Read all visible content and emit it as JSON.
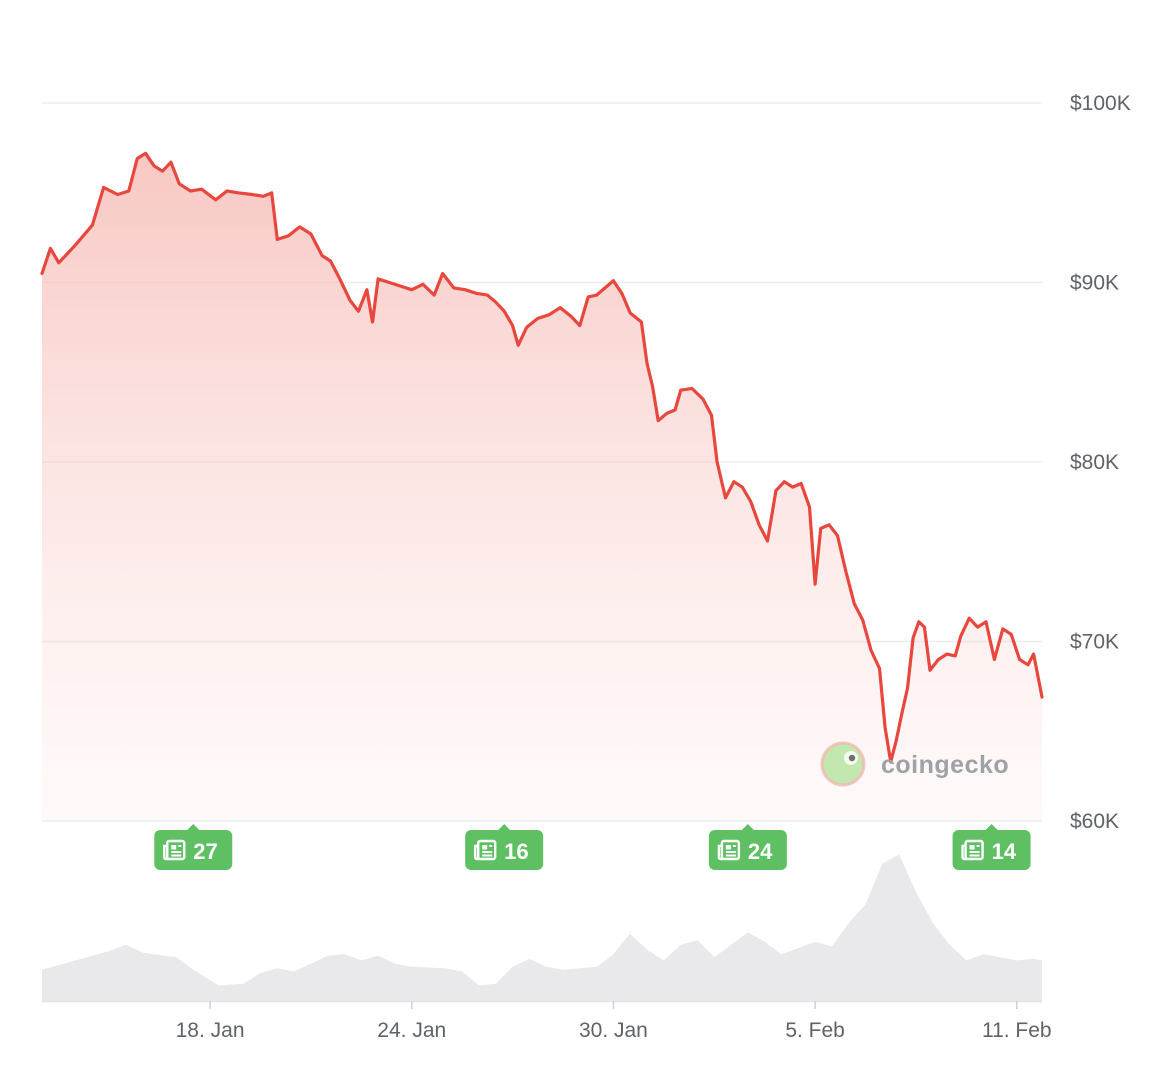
{
  "chart_data": {
    "type": "area",
    "title": "",
    "xlabel": "",
    "ylabel": "",
    "ylim": [
      60000,
      100000
    ],
    "x_domain": [
      "2025-01-13",
      "2025-02-11"
    ],
    "y_ticks": [
      {
        "value": 100000,
        "label": "$100K"
      },
      {
        "value": 90000,
        "label": "$90K"
      },
      {
        "value": 80000,
        "label": "$80K"
      },
      {
        "value": 70000,
        "label": "$70K"
      },
      {
        "value": 60000,
        "label": "$60K"
      }
    ],
    "x_ticks": [
      {
        "date": "2025-01-18",
        "label": "18. Jan"
      },
      {
        "date": "2025-01-24",
        "label": "24. Jan"
      },
      {
        "date": "2025-01-30",
        "label": "30. Jan"
      },
      {
        "date": "2025-02-05",
        "label": "5. Feb"
      },
      {
        "date": "2025-02-11",
        "label": "11. Feb"
      }
    ],
    "grid": true,
    "line_color": "#e8473e",
    "fill_color": "#f6a39c",
    "series": [
      {
        "points": [
          [
            "2025-01-13T00:00",
            90500
          ],
          [
            "2025-01-13T06:00",
            91900
          ],
          [
            "2025-01-13T12:00",
            91100
          ],
          [
            "2025-01-14T00:00",
            92100
          ],
          [
            "2025-01-14T12:00",
            93200
          ],
          [
            "2025-01-14T20:00",
            95300
          ],
          [
            "2025-01-15T06:00",
            94900
          ],
          [
            "2025-01-15T14:00",
            95100
          ],
          [
            "2025-01-15T20:00",
            96900
          ],
          [
            "2025-01-16T02:00",
            97200
          ],
          [
            "2025-01-16T08:00",
            96500
          ],
          [
            "2025-01-16T14:00",
            96200
          ],
          [
            "2025-01-16T20:00",
            96700
          ],
          [
            "2025-01-17T02:00",
            95500
          ],
          [
            "2025-01-17T10:00",
            95100
          ],
          [
            "2025-01-17T18:00",
            95200
          ],
          [
            "2025-01-18T04:00",
            94600
          ],
          [
            "2025-01-18T12:00",
            95100
          ],
          [
            "2025-01-18T20:00",
            95000
          ],
          [
            "2025-01-19T06:00",
            94900
          ],
          [
            "2025-01-19T14:00",
            94800
          ],
          [
            "2025-01-19T20:00",
            95000
          ],
          [
            "2025-01-20T00:00",
            92400
          ],
          [
            "2025-01-20T08:00",
            92600
          ],
          [
            "2025-01-20T16:00",
            93100
          ],
          [
            "2025-01-21T00:00",
            92700
          ],
          [
            "2025-01-21T08:00",
            91500
          ],
          [
            "2025-01-21T14:00",
            91200
          ],
          [
            "2025-01-21T20:00",
            90300
          ],
          [
            "2025-01-22T04:00",
            89000
          ],
          [
            "2025-01-22T10:00",
            88400
          ],
          [
            "2025-01-22T16:00",
            89600
          ],
          [
            "2025-01-22T20:00",
            87800
          ],
          [
            "2025-01-23T00:00",
            90200
          ],
          [
            "2025-01-23T08:00",
            90000
          ],
          [
            "2025-01-23T16:00",
            89800
          ],
          [
            "2025-01-24T00:00",
            89600
          ],
          [
            "2025-01-24T08:00",
            89900
          ],
          [
            "2025-01-24T16:00",
            89300
          ],
          [
            "2025-01-24T22:00",
            90500
          ],
          [
            "2025-01-25T06:00",
            89700
          ],
          [
            "2025-01-25T14:00",
            89600
          ],
          [
            "2025-01-25T22:00",
            89400
          ],
          [
            "2025-01-26T06:00",
            89300
          ],
          [
            "2025-01-26T12:00",
            88900
          ],
          [
            "2025-01-26T18:00",
            88400
          ],
          [
            "2025-01-27T00:00",
            87600
          ],
          [
            "2025-01-27T04:00",
            86500
          ],
          [
            "2025-01-27T10:00",
            87500
          ],
          [
            "2025-01-27T18:00",
            88000
          ],
          [
            "2025-01-28T02:00",
            88200
          ],
          [
            "2025-01-28T10:00",
            88600
          ],
          [
            "2025-01-28T18:00",
            88100
          ],
          [
            "2025-01-29T00:00",
            87600
          ],
          [
            "2025-01-29T06:00",
            89200
          ],
          [
            "2025-01-29T12:00",
            89300
          ],
          [
            "2025-01-29T18:00",
            89700
          ],
          [
            "2025-01-30T00:00",
            90100
          ],
          [
            "2025-01-30T06:00",
            89400
          ],
          [
            "2025-01-30T12:00",
            88300
          ],
          [
            "2025-01-30T20:00",
            87800
          ],
          [
            "2025-01-31T00:00",
            85500
          ],
          [
            "2025-01-31T04:00",
            84200
          ],
          [
            "2025-01-31T08:00",
            82300
          ],
          [
            "2025-01-31T14:00",
            82700
          ],
          [
            "2025-01-31T20:00",
            82900
          ],
          [
            "2025-02-01T00:00",
            84000
          ],
          [
            "2025-02-01T08:00",
            84100
          ],
          [
            "2025-02-01T16:00",
            83500
          ],
          [
            "2025-02-01T22:00",
            82600
          ],
          [
            "2025-02-02T02:00",
            80000
          ],
          [
            "2025-02-02T08:00",
            78000
          ],
          [
            "2025-02-02T14:00",
            78900
          ],
          [
            "2025-02-02T20:00",
            78600
          ],
          [
            "2025-02-03T02:00",
            77800
          ],
          [
            "2025-02-03T08:00",
            76500
          ],
          [
            "2025-02-03T14:00",
            75600
          ],
          [
            "2025-02-03T20:00",
            78400
          ],
          [
            "2025-02-04T02:00",
            78900
          ],
          [
            "2025-02-04T08:00",
            78600
          ],
          [
            "2025-02-04T14:00",
            78800
          ],
          [
            "2025-02-04T20:00",
            77500
          ],
          [
            "2025-02-05T00:00",
            73200
          ],
          [
            "2025-02-05T04:00",
            76300
          ],
          [
            "2025-02-05T10:00",
            76500
          ],
          [
            "2025-02-05T16:00",
            75900
          ],
          [
            "2025-02-05T22:00",
            73900
          ],
          [
            "2025-02-06T04:00",
            72100
          ],
          [
            "2025-02-06T10:00",
            71200
          ],
          [
            "2025-02-06T16:00",
            69500
          ],
          [
            "2025-02-06T22:00",
            68500
          ],
          [
            "2025-02-07T02:00",
            65200
          ],
          [
            "2025-02-07T06:00",
            63300
          ],
          [
            "2025-02-07T10:00",
            64500
          ],
          [
            "2025-02-07T14:00",
            66000
          ],
          [
            "2025-02-07T18:00",
            67400
          ],
          [
            "2025-02-07T22:00",
            70200
          ],
          [
            "2025-02-08T02:00",
            71100
          ],
          [
            "2025-02-08T06:00",
            70800
          ],
          [
            "2025-02-08T10:00",
            68400
          ],
          [
            "2025-02-08T16:00",
            69000
          ],
          [
            "2025-02-08T22:00",
            69300
          ],
          [
            "2025-02-09T04:00",
            69200
          ],
          [
            "2025-02-09T08:00",
            70300
          ],
          [
            "2025-02-09T14:00",
            71300
          ],
          [
            "2025-02-09T20:00",
            70800
          ],
          [
            "2025-02-10T02:00",
            71100
          ],
          [
            "2025-02-10T08:00",
            69000
          ],
          [
            "2025-02-10T14:00",
            70700
          ],
          [
            "2025-02-10T20:00",
            70400
          ],
          [
            "2025-02-11T02:00",
            69000
          ],
          [
            "2025-02-11T08:00",
            68700
          ],
          [
            "2025-02-11T12:00",
            69300
          ],
          [
            "2025-02-11T18:00",
            66900
          ]
        ]
      }
    ],
    "volume": {
      "color": "#e9e9ec",
      "points": [
        [
          "2025-01-13T00:00",
          0.2
        ],
        [
          "2025-01-14T00:00",
          0.26
        ],
        [
          "2025-01-15T00:00",
          0.32
        ],
        [
          "2025-01-15T12:00",
          0.36
        ],
        [
          "2025-01-16T00:00",
          0.31
        ],
        [
          "2025-01-17T00:00",
          0.28
        ],
        [
          "2025-01-17T12:00",
          0.2
        ],
        [
          "2025-01-18T06:00",
          0.1
        ],
        [
          "2025-01-19T00:00",
          0.11
        ],
        [
          "2025-01-19T12:00",
          0.18
        ],
        [
          "2025-01-20T00:00",
          0.21
        ],
        [
          "2025-01-20T12:00",
          0.19
        ],
        [
          "2025-01-21T00:00",
          0.24
        ],
        [
          "2025-01-21T12:00",
          0.29
        ],
        [
          "2025-01-22T00:00",
          0.3
        ],
        [
          "2025-01-22T12:00",
          0.26
        ],
        [
          "2025-01-23T00:00",
          0.29
        ],
        [
          "2025-01-23T12:00",
          0.24
        ],
        [
          "2025-01-24T00:00",
          0.22
        ],
        [
          "2025-01-25T00:00",
          0.21
        ],
        [
          "2025-01-25T12:00",
          0.19
        ],
        [
          "2025-01-26T00:00",
          0.1
        ],
        [
          "2025-01-26T12:00",
          0.11
        ],
        [
          "2025-01-27T00:00",
          0.22
        ],
        [
          "2025-01-27T12:00",
          0.27
        ],
        [
          "2025-01-28T00:00",
          0.22
        ],
        [
          "2025-01-28T12:00",
          0.2
        ],
        [
          "2025-01-29T00:00",
          0.21
        ],
        [
          "2025-01-29T12:00",
          0.22
        ],
        [
          "2025-01-30T00:00",
          0.3
        ],
        [
          "2025-01-30T06:00",
          0.37
        ],
        [
          "2025-01-30T12:00",
          0.43
        ],
        [
          "2025-01-31T00:00",
          0.33
        ],
        [
          "2025-01-31T12:00",
          0.26
        ],
        [
          "2025-02-01T00:00",
          0.36
        ],
        [
          "2025-02-01T12:00",
          0.39
        ],
        [
          "2025-02-02T00:00",
          0.28
        ],
        [
          "2025-02-02T12:00",
          0.36
        ],
        [
          "2025-02-03T00:00",
          0.44
        ],
        [
          "2025-02-03T12:00",
          0.38
        ],
        [
          "2025-02-04T00:00",
          0.3
        ],
        [
          "2025-02-04T12:00",
          0.34
        ],
        [
          "2025-02-05T00:00",
          0.38
        ],
        [
          "2025-02-05T12:00",
          0.35
        ],
        [
          "2025-02-06T00:00",
          0.5
        ],
        [
          "2025-02-06T12:00",
          0.62
        ],
        [
          "2025-02-07T00:00",
          0.88
        ],
        [
          "2025-02-07T12:00",
          0.94
        ],
        [
          "2025-02-08T00:00",
          0.7
        ],
        [
          "2025-02-08T12:00",
          0.5
        ],
        [
          "2025-02-09T00:00",
          0.36
        ],
        [
          "2025-02-09T12:00",
          0.26
        ],
        [
          "2025-02-10T00:00",
          0.3
        ],
        [
          "2025-02-10T12:00",
          0.28
        ],
        [
          "2025-02-11T00:00",
          0.26
        ],
        [
          "2025-02-11T12:00",
          0.27
        ],
        [
          "2025-02-11T18:00",
          0.26
        ]
      ]
    },
    "news_markers": [
      {
        "date": "2025-01-17T12:00",
        "count": "27"
      },
      {
        "date": "2025-01-26T18:00",
        "count": "16"
      },
      {
        "date": "2025-02-03T00:00",
        "count": "24"
      },
      {
        "date": "2025-02-10T06:00",
        "count": "14"
      }
    ]
  },
  "watermark": {
    "text": "coingecko"
  },
  "icons": {
    "news": "newspaper-icon",
    "logo": "coingecko-gecko-icon"
  }
}
